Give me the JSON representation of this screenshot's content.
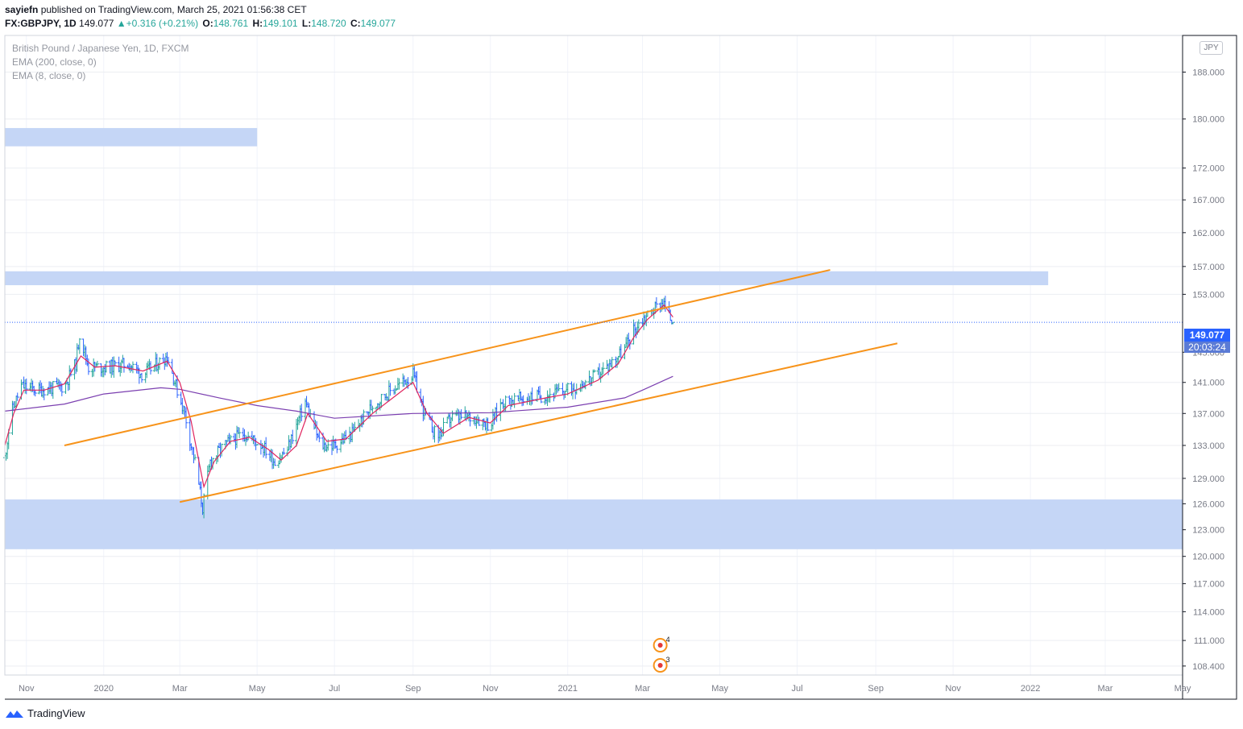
{
  "header": {
    "author": "sayiefn",
    "published_text": "published on TradingView.com, March 25, 2021 01:56:38 CET",
    "symbol_line": "FX:GBPJPY, 1D",
    "last": "149.077",
    "change": "+0.316 (+0.21%)",
    "open_label": "O:",
    "open": "148.761",
    "high_label": "H:",
    "high": "149.101",
    "low_label": "L:",
    "low": "148.720",
    "close_label": "C:",
    "close": "149.077"
  },
  "legend": {
    "instrument": "British Pound / Japanese Yen, 1D, FXCM",
    "ema200": "EMA (200, close, 0)",
    "ema8": "EMA (8, close, 0)"
  },
  "currency_badge": "JPY",
  "price_tag": {
    "price": "149.077",
    "countdown": "20:03:24"
  },
  "footer": {
    "brand": "TradingView"
  },
  "colors": {
    "candles": "#2962ff",
    "ema200": "#7b3fb0",
    "ema8": "#e0245e",
    "channel": "#f7931a",
    "zone": "#c2d4f5",
    "price_line": "#2962ff",
    "axis_text": "#787b86"
  },
  "chart_data": {
    "type": "line",
    "instrument": "FX:GBPJPY",
    "timeframe": "1D",
    "y_scale": "log",
    "ylim": [
      107.5,
      194.5
    ],
    "x_range": [
      "2019-10-15",
      "2022-05-01"
    ],
    "y_ticks": [
      "188.000",
      "180.000",
      "172.000",
      "167.000",
      "162.000",
      "157.000",
      "153.000",
      "145.000",
      "141.000",
      "137.000",
      "133.000",
      "129.000",
      "126.000",
      "123.000",
      "120.000",
      "117.000",
      "114.000",
      "111.000",
      "108.400"
    ],
    "x_ticks": [
      {
        "date": "2019-11-01",
        "label": "Nov"
      },
      {
        "date": "2020-01-01",
        "label": "2020"
      },
      {
        "date": "2020-03-01",
        "label": "Mar"
      },
      {
        "date": "2020-05-01",
        "label": "May"
      },
      {
        "date": "2020-07-01",
        "label": "Jul"
      },
      {
        "date": "2020-09-01",
        "label": "Sep"
      },
      {
        "date": "2020-11-01",
        "label": "Nov"
      },
      {
        "date": "2021-01-01",
        "label": "2021"
      },
      {
        "date": "2021-03-01",
        "label": "Mar"
      },
      {
        "date": "2021-05-01",
        "label": "May"
      },
      {
        "date": "2021-07-01",
        "label": "Jul"
      },
      {
        "date": "2021-09-01",
        "label": "Sep"
      },
      {
        "date": "2021-11-01",
        "label": "Nov"
      },
      {
        "date": "2022-01-01",
        "label": "2022"
      },
      {
        "date": "2022-03-01",
        "label": "Mar"
      },
      {
        "date": "2022-05-01",
        "label": "May"
      }
    ],
    "price_path": [
      [
        "2019-10-15",
        131.5
      ],
      [
        "2019-10-20",
        137
      ],
      [
        "2019-10-28",
        140.5
      ],
      [
        "2019-11-10",
        140
      ],
      [
        "2019-12-01",
        140.5
      ],
      [
        "2019-12-10",
        143.5
      ],
      [
        "2019-12-13",
        147.5
      ],
      [
        "2019-12-20",
        143
      ],
      [
        "2020-01-05",
        143
      ],
      [
        "2020-01-20",
        143.5
      ],
      [
        "2020-02-01",
        142
      ],
      [
        "2020-02-20",
        144.5
      ],
      [
        "2020-02-28",
        140
      ],
      [
        "2020-03-05",
        137
      ],
      [
        "2020-03-10",
        133
      ],
      [
        "2020-03-13",
        131
      ],
      [
        "2020-03-19",
        125.5
      ],
      [
        "2020-03-25",
        131
      ],
      [
        "2020-04-05",
        133
      ],
      [
        "2020-04-20",
        134.5
      ],
      [
        "2020-05-05",
        133
      ],
      [
        "2020-05-15",
        131
      ],
      [
        "2020-05-25",
        132.5
      ],
      [
        "2020-06-08",
        138.5
      ],
      [
        "2020-06-20",
        133
      ],
      [
        "2020-07-01",
        133
      ],
      [
        "2020-07-15",
        134.5
      ],
      [
        "2020-07-31",
        138
      ],
      [
        "2020-08-15",
        140
      ],
      [
        "2020-09-01",
        142
      ],
      [
        "2020-09-10",
        137
      ],
      [
        "2020-09-20",
        134
      ],
      [
        "2020-10-01",
        136.5
      ],
      [
        "2020-10-20",
        136.5
      ],
      [
        "2020-11-01",
        135.5
      ],
      [
        "2020-11-10",
        138.5
      ],
      [
        "2020-12-01",
        139
      ],
      [
        "2020-12-20",
        139.5
      ],
      [
        "2021-01-01",
        140
      ],
      [
        "2021-01-20",
        141.5
      ],
      [
        "2021-02-01",
        143
      ],
      [
        "2021-02-15",
        145.5
      ],
      [
        "2021-02-22",
        148
      ],
      [
        "2021-03-01",
        149.5
      ],
      [
        "2021-03-10",
        151
      ],
      [
        "2021-03-17",
        152
      ],
      [
        "2021-03-22",
        150
      ],
      [
        "2021-03-25",
        149.077
      ]
    ],
    "series": [
      {
        "name": "EMA (200, close, 0)",
        "values": [
          [
            "2019-10-15",
            137.3
          ],
          [
            "2019-12-01",
            138.2
          ],
          [
            "2020-01-01",
            139.5
          ],
          [
            "2020-02-15",
            140.3
          ],
          [
            "2020-03-01",
            140.1
          ],
          [
            "2020-04-01",
            139
          ],
          [
            "2020-05-01",
            138
          ],
          [
            "2020-06-01",
            137.3
          ],
          [
            "2020-07-01",
            136.4
          ],
          [
            "2020-09-01",
            137
          ],
          [
            "2020-11-01",
            137.1
          ],
          [
            "2021-01-01",
            137.8
          ],
          [
            "2021-02-15",
            139
          ],
          [
            "2021-03-01",
            140
          ],
          [
            "2021-03-25",
            141.8
          ]
        ]
      },
      {
        "name": "EMA (8, close, 0)",
        "values": [
          [
            "2019-10-15",
            133
          ],
          [
            "2019-10-22",
            137
          ],
          [
            "2019-10-30",
            140
          ],
          [
            "2019-11-15",
            140
          ],
          [
            "2019-12-01",
            140.8
          ],
          [
            "2019-12-14",
            144.5
          ],
          [
            "2019-12-25",
            143
          ],
          [
            "2020-01-10",
            143.2
          ],
          [
            "2020-02-01",
            142.5
          ],
          [
            "2020-02-20",
            143.8
          ],
          [
            "2020-03-01",
            141
          ],
          [
            "2020-03-10",
            136
          ],
          [
            "2020-03-20",
            128
          ],
          [
            "2020-03-28",
            131
          ],
          [
            "2020-04-10",
            133.5
          ],
          [
            "2020-04-25",
            134
          ],
          [
            "2020-05-10",
            132.5
          ],
          [
            "2020-05-20",
            131.2
          ],
          [
            "2020-06-01",
            133
          ],
          [
            "2020-06-10",
            137
          ],
          [
            "2020-06-25",
            133.5
          ],
          [
            "2020-07-10",
            133.8
          ],
          [
            "2020-07-31",
            137
          ],
          [
            "2020-08-20",
            139.5
          ],
          [
            "2020-09-01",
            141
          ],
          [
            "2020-09-12",
            137
          ],
          [
            "2020-09-25",
            134.5
          ],
          [
            "2020-10-15",
            136.5
          ],
          [
            "2020-11-01",
            135.8
          ],
          [
            "2020-11-15",
            138
          ],
          [
            "2020-12-15",
            139
          ],
          [
            "2021-01-01",
            139.5
          ],
          [
            "2021-01-25",
            141.3
          ],
          [
            "2021-02-10",
            143.5
          ],
          [
            "2021-02-22",
            147
          ],
          [
            "2021-03-05",
            149.5
          ],
          [
            "2021-03-18",
            151.5
          ],
          [
            "2021-03-25",
            149.8
          ]
        ]
      }
    ],
    "channel_lines": [
      {
        "from": [
          "2019-12-01",
          133
        ],
        "to": [
          "2021-07-27",
          156.5
        ]
      },
      {
        "from": [
          "2020-03-01",
          126.2
        ],
        "to": [
          "2021-09-18",
          146.2
        ]
      }
    ],
    "zones": [
      {
        "from_date": "2019-10-15",
        "to_date": "2020-05-01",
        "low": 175.5,
        "high": 178.5
      },
      {
        "from_date": "2019-10-15",
        "to_date": "2022-01-15",
        "low": 154.3,
        "high": 156.3
      },
      {
        "from_date": "2019-10-15",
        "to_date": "2022-05-01",
        "low": 120.8,
        "high": 126.5
      }
    ],
    "last_price": 149.077,
    "events": [
      {
        "date": "2021-03-15",
        "label": "4"
      },
      {
        "date": "2021-03-15",
        "label": "3"
      }
    ]
  }
}
